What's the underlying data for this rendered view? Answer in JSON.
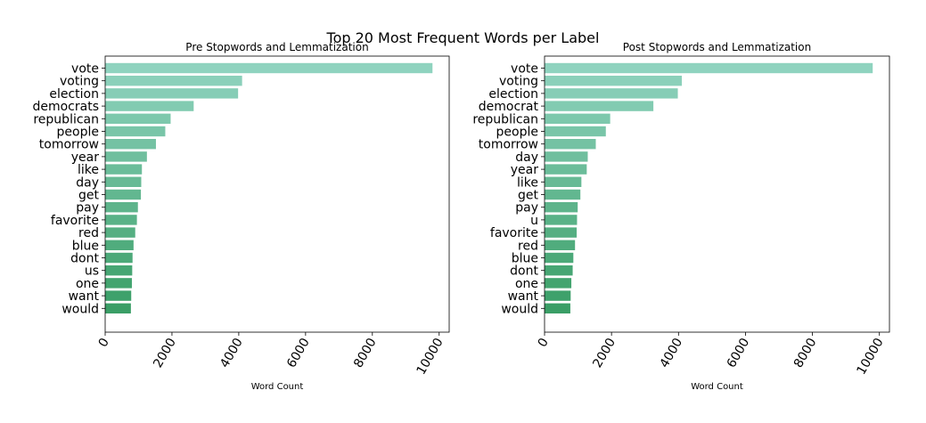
{
  "figure": {
    "title": "Top 20 Most Frequent Words per Label"
  },
  "chart_data": [
    {
      "type": "bar",
      "orientation": "horizontal",
      "title": "Pre Stopwords and Lemmatization",
      "xlabel": "Word Count",
      "ylabel": "",
      "xlim": [
        0,
        10300
      ],
      "xticks": [
        0,
        2000,
        4000,
        6000,
        8000,
        10000
      ],
      "grid": false,
      "categories": [
        "vote",
        "voting",
        "election",
        "democrats",
        "republican",
        "people",
        "tomorrow",
        "year",
        "like",
        "day",
        "get",
        "pay",
        "favorite",
        "red",
        "blue",
        "dont",
        "us",
        "one",
        "want",
        "would"
      ],
      "values": [
        9800,
        4100,
        3980,
        2650,
        1960,
        1800,
        1520,
        1250,
        1100,
        1080,
        1070,
        980,
        950,
        900,
        850,
        820,
        810,
        800,
        780,
        770
      ]
    },
    {
      "type": "bar",
      "orientation": "horizontal",
      "title": "Post Stopwords and Lemmatization",
      "xlabel": "Word Count",
      "ylabel": "",
      "xlim": [
        0,
        10300
      ],
      "xticks": [
        0,
        2000,
        4000,
        6000,
        8000,
        10000
      ],
      "grid": false,
      "categories": [
        "vote",
        "voting",
        "election",
        "democrat",
        "republican",
        "people",
        "tomorrow",
        "day",
        "year",
        "like",
        "get",
        "pay",
        "u",
        "favorite",
        "red",
        "blue",
        "dont",
        "one",
        "want",
        "would"
      ],
      "values": [
        9800,
        4100,
        3980,
        3250,
        1960,
        1830,
        1530,
        1290,
        1260,
        1100,
        1070,
        990,
        970,
        960,
        910,
        860,
        840,
        800,
        780,
        770
      ]
    }
  ],
  "colors": {
    "bar_top": "#8fd3bf",
    "bar_bottom": "#3a9e66"
  }
}
